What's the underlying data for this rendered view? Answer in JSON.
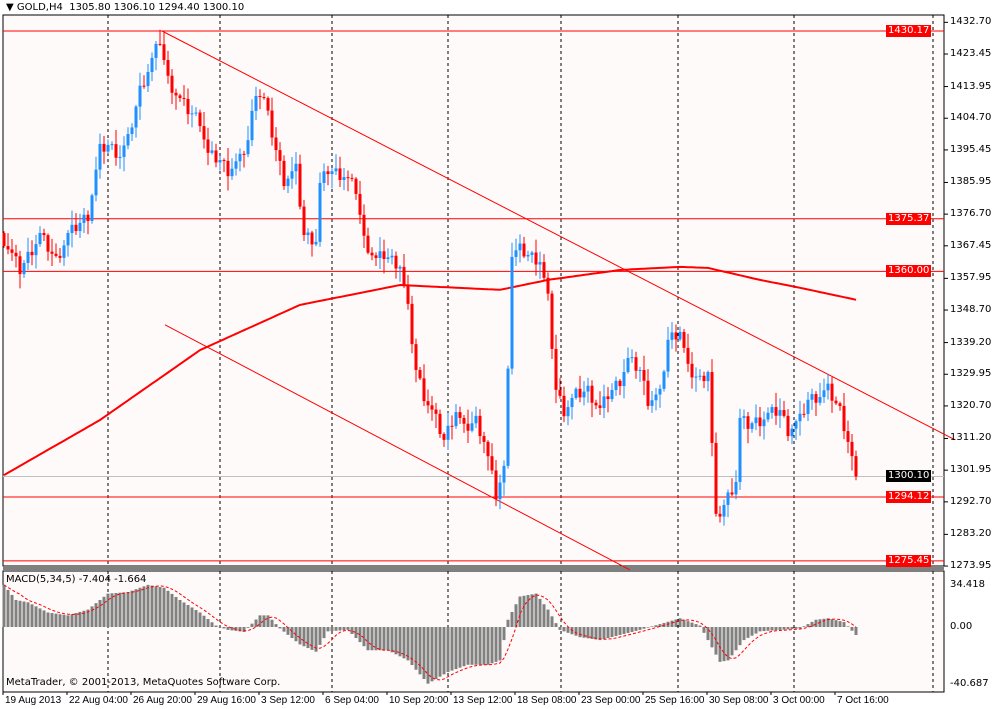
{
  "header": {
    "symbol": "GOLD,H4",
    "open": "1305.80",
    "high": "1306.10",
    "low": "1294.40",
    "close": "1300.10"
  },
  "macd_label": "MACD(5,34,5) -7.404 -1.664",
  "copyright": "MetaTrader, © 2001-2013, MetaQuotes Software Corp.",
  "colors": {
    "bull": "#1e90ff",
    "bear": "#ff0000",
    "level": "#ff0000",
    "bid": "#c0c0c0",
    "background": "#fffafa",
    "histogram": "#808080"
  },
  "price_axis": [
    "1432.70",
    "1423.45",
    "1413.95",
    "1404.70",
    "1395.45",
    "1385.95",
    "1376.70",
    "1367.45",
    "1357.95",
    "1348.70",
    "1339.20",
    "1329.95",
    "1320.70",
    "1311.20",
    "1301.95",
    "1292.70",
    "1283.20",
    "1273.95"
  ],
  "macd_axis": [
    "34.418",
    "0.00",
    "-40.687"
  ],
  "levels": [
    {
      "price": 1430.17,
      "label": "1430.17"
    },
    {
      "price": 1375.37,
      "label": "1375.37"
    },
    {
      "price": 1360.0,
      "label": "1360.00"
    },
    {
      "price": 1294.12,
      "label": "1294.12"
    },
    {
      "price": 1275.45,
      "label": "1275.45"
    }
  ],
  "bid": {
    "price": 1300.1,
    "label": "1300.10"
  },
  "time_axis": [
    "19 Aug 2013",
    "22 Aug 04:00",
    "26 Aug 20:00",
    "29 Aug 16:00",
    "3 Sep 12:00",
    "6 Sep 04:00",
    "10 Sep 20:00",
    "13 Sep 12:00",
    "18 Sep 08:00",
    "23 Sep 00:00",
    "25 Sep 16:00",
    "30 Sep 08:00",
    "3 Oct 00:00",
    "7 Oct 16:00"
  ],
  "chart_data": {
    "type": "candlestick",
    "symbol": "GOLD",
    "timeframe": "H4",
    "ylim": [
      1272.0,
      1434.0
    ],
    "close_keyframes": [
      [
        0,
        1369.2
      ],
      [
        4,
        1360.4
      ],
      [
        9,
        1370.6
      ],
      [
        13,
        1363.3
      ],
      [
        16,
        1370.6
      ],
      [
        21,
        1376.5
      ],
      [
        24,
        1395.4
      ],
      [
        26,
        1396.9
      ],
      [
        29,
        1394.0
      ],
      [
        31,
        1398.3
      ],
      [
        34,
        1413.0
      ],
      [
        36,
        1418.8
      ],
      [
        39,
        1427.5
      ],
      [
        41,
        1415.9
      ],
      [
        44,
        1410.0
      ],
      [
        46,
        1407.1
      ],
      [
        49,
        1404.2
      ],
      [
        51,
        1394.0
      ],
      [
        54,
        1392.5
      ],
      [
        56,
        1389.6
      ],
      [
        59,
        1392.5
      ],
      [
        61,
        1398.3
      ],
      [
        63,
        1413.0
      ],
      [
        65,
        1410.0
      ],
      [
        68,
        1395.4
      ],
      [
        70,
        1386.7
      ],
      [
        73,
        1389.6
      ],
      [
        75,
        1370.6
      ],
      [
        78,
        1369.2
      ],
      [
        79,
        1385.2
      ],
      [
        81,
        1389.6
      ],
      [
        85,
        1388.1
      ],
      [
        88,
        1383.8
      ],
      [
        90,
        1369.2
      ],
      [
        93,
        1363.3
      ],
      [
        95,
        1364.8
      ],
      [
        99,
        1361.9
      ],
      [
        101,
        1348.7
      ],
      [
        103,
        1331.2
      ],
      [
        105,
        1323.9
      ],
      [
        108,
        1316.6
      ],
      [
        110,
        1310.8
      ],
      [
        113,
        1319.5
      ],
      [
        115,
        1313.7
      ],
      [
        118,
        1316.6
      ],
      [
        120,
        1310.8
      ],
      [
        123,
        1294.7
      ],
      [
        125,
        1302.0
      ],
      [
        127,
        1364.8
      ],
      [
        129,
        1366.3
      ],
      [
        131,
        1364.8
      ],
      [
        134,
        1363.3
      ],
      [
        136,
        1351.7
      ],
      [
        138,
        1325.4
      ],
      [
        140,
        1319.5
      ],
      [
        143,
        1323.9
      ],
      [
        146,
        1325.4
      ],
      [
        149,
        1319.5
      ],
      [
        151,
        1323.9
      ],
      [
        154,
        1328.3
      ],
      [
        156,
        1334.1
      ],
      [
        159,
        1331.2
      ],
      [
        161,
        1322.5
      ],
      [
        164,
        1323.9
      ],
      [
        166,
        1340.0
      ],
      [
        169,
        1342.9
      ],
      [
        171,
        1331.2
      ],
      [
        174,
        1328.3
      ],
      [
        176,
        1331.2
      ],
      [
        178,
        1287.4
      ],
      [
        180,
        1291.8
      ],
      [
        183,
        1299.1
      ],
      [
        184,
        1316.6
      ],
      [
        186,
        1315.2
      ],
      [
        189,
        1316.6
      ],
      [
        191,
        1318.1
      ],
      [
        194,
        1319.5
      ],
      [
        196,
        1313.7
      ],
      [
        199,
        1316.6
      ],
      [
        201,
        1322.5
      ],
      [
        204,
        1323.9
      ],
      [
        206,
        1325.4
      ],
      [
        209,
        1319.5
      ],
      [
        211,
        1310.8
      ],
      [
        213,
        1300.1
      ]
    ],
    "moving_average_keyframes": [
      [
        0,
        1300.5
      ],
      [
        24,
        1316.6
      ],
      [
        49,
        1337.0
      ],
      [
        74,
        1350.2
      ],
      [
        99,
        1356.0
      ],
      [
        124,
        1354.6
      ],
      [
        136,
        1357.5
      ],
      [
        154,
        1360.4
      ],
      [
        169,
        1361.3
      ],
      [
        176,
        1361.0
      ],
      [
        189,
        1357.5
      ],
      [
        199,
        1355.2
      ],
      [
        213,
        1351.7
      ]
    ],
    "trendlines": [
      {
        "from": [
          39.5,
          1430.17
        ],
        "to": [
          237.75,
          1310.8
        ]
      },
      {
        "from": [
          40.25,
          1344.4
        ],
        "to": [
          156.5,
          1272.8
        ]
      }
    ],
    "macd": {
      "params": "5,34,5",
      "ylim": [
        -40.687,
        34.418
      ],
      "histogram_keyframes": [
        [
          0,
          29
        ],
        [
          3,
          18.6
        ],
        [
          6,
          17
        ],
        [
          11,
          10
        ],
        [
          16,
          8
        ],
        [
          21,
          12
        ],
        [
          24,
          18.6
        ],
        [
          26,
          23
        ],
        [
          31,
          24
        ],
        [
          36,
          29
        ],
        [
          40,
          27
        ],
        [
          44,
          18.6
        ],
        [
          49,
          10
        ],
        [
          53,
          1
        ],
        [
          56,
          -2
        ],
        [
          60,
          -3.4
        ],
        [
          64,
          8
        ],
        [
          66,
          8
        ],
        [
          69,
          -1
        ],
        [
          74,
          -12
        ],
        [
          78,
          -17
        ],
        [
          81,
          -3
        ],
        [
          86,
          -2
        ],
        [
          91,
          -16
        ],
        [
          96,
          -16
        ],
        [
          101,
          -23
        ],
        [
          106,
          -39
        ],
        [
          111,
          -31
        ],
        [
          116,
          -26
        ],
        [
          121,
          -26
        ],
        [
          124,
          -23
        ],
        [
          126,
          5
        ],
        [
          129,
          21
        ],
        [
          133,
          23
        ],
        [
          136,
          12
        ],
        [
          139,
          -2
        ],
        [
          144,
          -7
        ],
        [
          149,
          -9
        ],
        [
          154,
          -5.5
        ],
        [
          159,
          -2
        ],
        [
          164,
          2
        ],
        [
          169,
          6
        ],
        [
          174,
          1
        ],
        [
          176,
          -9
        ],
        [
          179,
          -24
        ],
        [
          181,
          -23
        ],
        [
          185,
          -9
        ],
        [
          189,
          -3
        ],
        [
          194,
          -2
        ],
        [
          199,
          -1
        ],
        [
          203,
          5
        ],
        [
          206,
          6
        ],
        [
          210,
          3.4
        ],
        [
          213,
          -5.5
        ]
      ]
    }
  }
}
